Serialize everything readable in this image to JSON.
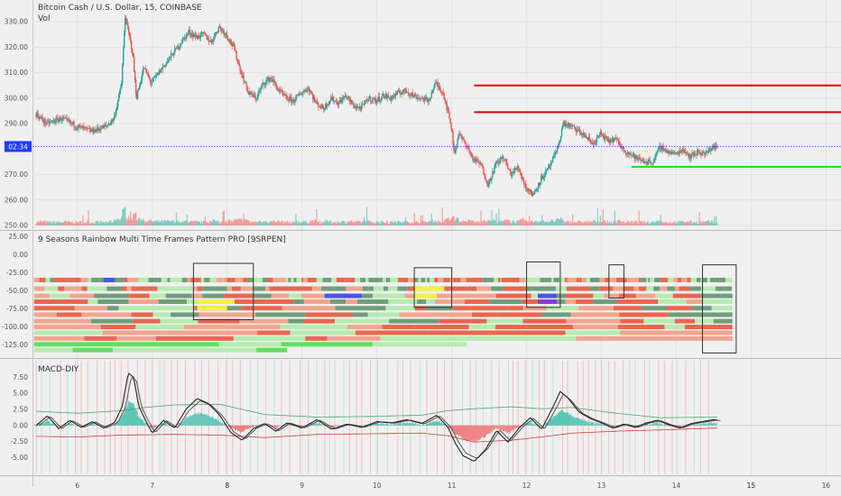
{
  "header": {
    "symbol_title": "Bitcoin Cash / U.S. Dollar, 15, COINBASE",
    "volume_label": "Vol",
    "price_badge": "02:34"
  },
  "colors": {
    "background": "#f0f0f0",
    "grid": "#e3e3e3",
    "candle_up": "#26a69a",
    "candle_down": "#ef5350",
    "resistance": "#e00000",
    "support": "#19e619",
    "current_price_line": "#1e3cff",
    "rainbow_red": "#e8674e",
    "rainbow_salmon": "#f2a58f",
    "rainbow_green_dark": "#6f9e7c",
    "rainbow_green_light": "#b6ecb0",
    "rainbow_lime": "#5fe05f",
    "rainbow_yellow": "#f5f048",
    "rainbow_blue": "#4a55e6",
    "rainbow_purple": "#8a3cc8",
    "macd_fast": "#222222",
    "macd_band": "#44aa66",
    "macd_signal": "#d23c3c",
    "hist_up": "#5cc6b6",
    "hist_down": "#f08080"
  },
  "chart_data": [
    {
      "type": "line",
      "title": "Bitcoin Cash / U.S. Dollar, 15, COINBASE",
      "series_note": "candlestick price series with volume",
      "x_tick_labels": [
        "6",
        "7",
        "8",
        "9",
        "10",
        "11",
        "12",
        "13",
        "14",
        "15",
        "16"
      ],
      "x_range": [
        5.4,
        16.2
      ],
      "y_tick_labels": [
        "330.00",
        "320.00",
        "310.00",
        "300.00",
        "290.00",
        "270.00",
        "260.00",
        "250.00"
      ],
      "ylim": [
        250,
        335
      ],
      "current_price": 281,
      "close_path": {
        "x": [
          5.45,
          5.6,
          5.8,
          6.0,
          6.2,
          6.4,
          6.5,
          6.6,
          6.65,
          6.7,
          6.75,
          6.8,
          6.9,
          7.0,
          7.1,
          7.2,
          7.3,
          7.4,
          7.5,
          7.6,
          7.7,
          7.8,
          7.9,
          8.0,
          8.1,
          8.2,
          8.3,
          8.4,
          8.5,
          8.6,
          8.7,
          8.8,
          8.9,
          9.0,
          9.1,
          9.2,
          9.3,
          9.4,
          9.5,
          9.6,
          9.7,
          9.8,
          9.9,
          10.0,
          10.1,
          10.2,
          10.3,
          10.4,
          10.5,
          10.6,
          10.7,
          10.8,
          10.9,
          11.0,
          11.05,
          11.1,
          11.2,
          11.3,
          11.4,
          11.5,
          11.6,
          11.7,
          11.8,
          11.9,
          12.0,
          12.1,
          12.2,
          12.3,
          12.4,
          12.45,
          12.5,
          12.6,
          12.7,
          12.8,
          12.9,
          13.0,
          13.1,
          13.2,
          13.3,
          13.4,
          13.5,
          13.6,
          13.7,
          13.8,
          13.9,
          14.0,
          14.1,
          14.2,
          14.3,
          14.4,
          14.5,
          14.55
        ],
        "y": [
          294,
          290,
          292,
          289,
          287,
          289,
          292,
          305,
          332,
          325,
          318,
          300,
          312,
          306,
          310,
          314,
          318,
          322,
          326,
          324,
          325,
          322,
          328,
          325,
          320,
          310,
          302,
          300,
          306,
          308,
          303,
          300,
          299,
          302,
          304,
          298,
          296,
          300,
          298,
          301,
          297,
          296,
          300,
          299,
          301,
          300,
          302,
          303,
          301,
          300,
          299,
          306,
          302,
          290,
          278,
          286,
          282,
          276,
          274,
          266,
          274,
          277,
          270,
          273,
          265,
          262,
          268,
          272,
          278,
          283,
          290,
          289,
          287,
          285,
          282,
          286,
          283,
          284,
          280,
          278,
          276,
          275,
          275,
          281,
          279,
          278,
          280,
          277,
          279,
          278,
          281,
          281
        ]
      },
      "resistance_levels": [
        {
          "price": 305,
          "x_start": 11.3,
          "x_end": 16.2
        },
        {
          "price": 294.5,
          "x_start": 11.3,
          "x_end": 16.2
        }
      ],
      "support_levels": [
        {
          "price": 273,
          "x_start": 13.4,
          "x_end": 16.2
        }
      ]
    },
    {
      "type": "heatmap",
      "title": "9 Seasons Rainbow Multi Time Frames Pattern PRO [9SRPEN]",
      "y_tick_labels": [
        "25.00",
        "0.00",
        "-25.00",
        "-50.00",
        "-75.00",
        "-100.00",
        "-125.00"
      ],
      "ylim": [
        -138,
        28
      ],
      "row_values": [
        -35,
        -47,
        -57,
        -65,
        -74,
        -83,
        -92,
        -100,
        -108,
        -116,
        -124,
        -132
      ],
      "highlight_boxes": [
        {
          "x_start": 7.55,
          "x_end": 8.35,
          "y_top": -12,
          "y_bottom": -90
        },
        {
          "x_start": 10.5,
          "x_end": 11.0,
          "y_top": -18,
          "y_bottom": -73
        },
        {
          "x_start": 12.0,
          "x_end": 12.45,
          "y_top": -10,
          "y_bottom": -73
        },
        {
          "x_start": 13.1,
          "x_end": 13.3,
          "y_top": -14,
          "y_bottom": -60
        },
        {
          "x_start": 14.35,
          "x_end": 14.8,
          "y_top": -14,
          "y_bottom": -136
        }
      ]
    },
    {
      "type": "line",
      "title": "MACD-DIY",
      "y_tick_labels": [
        "7.50",
        "5.00",
        "2.50",
        "0.00",
        "-2.50",
        "-5.00"
      ],
      "ylim": [
        -7.2,
        9.8
      ],
      "series": [
        {
          "x": [
            5.45,
            5.6,
            5.75,
            5.9,
            6.05,
            6.2,
            6.35,
            6.5,
            6.6,
            6.68,
            6.75,
            6.82,
            6.9,
            7.0,
            7.15,
            7.3,
            7.45,
            7.6,
            7.75,
            7.9,
            8.05,
            8.2,
            8.35,
            8.5,
            8.65,
            8.8,
            9.0,
            9.2,
            9.4,
            9.6,
            9.8,
            10.0,
            10.2,
            10.4,
            10.6,
            10.8,
            10.95,
            11.05,
            11.15,
            11.3,
            11.45,
            11.6,
            11.75,
            11.9,
            12.05,
            12.2,
            12.35,
            12.45,
            12.55,
            12.7,
            12.85,
            13.0,
            13.15,
            13.3,
            13.45,
            13.6,
            13.75,
            13.9,
            14.05,
            14.2,
            14.35,
            14.5,
            14.55
          ],
          "y": [
            0,
            1.5,
            -0.5,
            0.8,
            -0.3,
            0.6,
            -0.4,
            0.5,
            3,
            8.2,
            7.5,
            3,
            1,
            -1.2,
            0.8,
            -0.4,
            2.5,
            4.2,
            3.4,
            1.6,
            -1.1,
            -2.3,
            -0.5,
            0.3,
            -0.9,
            0.4,
            -0.4,
            0.9,
            -0.6,
            0.2,
            -0.3,
            0.6,
            0.4,
            0.9,
            0.3,
            1.6,
            -0.3,
            -2.8,
            -4.7,
            -5.6,
            -3.8,
            -0.8,
            -2.6,
            -0.4,
            1.2,
            -0.6,
            2.8,
            5.3,
            4.3,
            2.1,
            1.1,
            0.4,
            -0.4,
            0.2,
            -0.3,
            0.4,
            0.8,
            0.1,
            -0.4,
            0.3,
            0.6,
            0.9,
            0.8
          ]
        },
        {
          "x": [
            5.45,
            6.0,
            6.6,
            6.9,
            7.3,
            7.9,
            8.5,
            9.2,
            9.9,
            10.6,
            10.95,
            11.3,
            11.8,
            12.2,
            12.6,
            13.2,
            13.8,
            14.55
          ],
          "y": [
            2.2,
            1.9,
            2.3,
            2.8,
            3.2,
            3.3,
            1.7,
            1.3,
            1.4,
            1.6,
            2.3,
            2.6,
            2.9,
            2.6,
            2.8,
            1.9,
            1.2,
            1.3
          ]
        },
        {
          "x": [
            5.45,
            6.0,
            6.6,
            7.3,
            7.9,
            8.5,
            9.2,
            9.9,
            10.6,
            10.95,
            11.3,
            11.8,
            12.2,
            12.6,
            13.2,
            13.8,
            14.55
          ],
          "y": [
            -1.7,
            -1.8,
            -1.5,
            -1.4,
            -1.5,
            -1.9,
            -1.4,
            -1.3,
            -1.2,
            -1.6,
            -2.6,
            -2.3,
            -1.8,
            -1.2,
            -0.9,
            -0.7,
            -0.4
          ]
        }
      ]
    }
  ]
}
